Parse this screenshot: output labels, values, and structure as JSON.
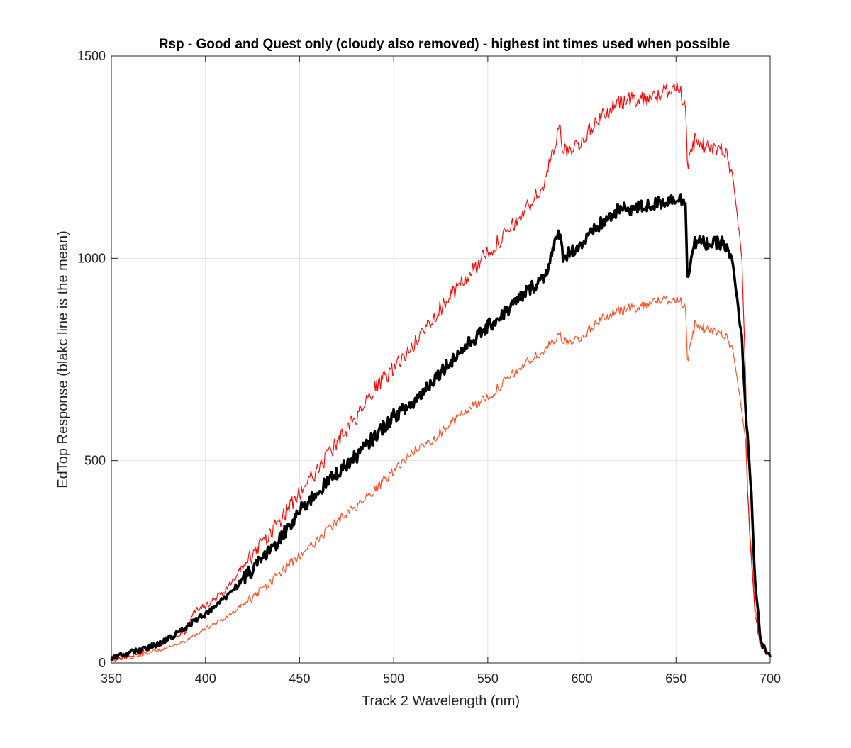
{
  "chart_data": {
    "type": "line",
    "title": "Rsp - Good and Quest only (cloudy also removed) - highest int times used when possible",
    "xlabel": "Track 2 Wavelength (nm)",
    "ylabel": "EdTop Response (blakc line is the mean)",
    "xlim": [
      350,
      700
    ],
    "ylim": [
      0,
      1500
    ],
    "xticks": [
      "350",
      "400",
      "450",
      "500",
      "550",
      "600",
      "650",
      "700"
    ],
    "yticks": [
      "0",
      "500",
      "1000",
      "1500"
    ],
    "grid": true,
    "colors": {
      "upper": "#ff0000",
      "lower": "#ff4a1f",
      "mean": "#000000",
      "grid": "#e3e3e3",
      "axis": "#262626"
    },
    "x": [
      350,
      360,
      370,
      380,
      390,
      395,
      400,
      410,
      420,
      430,
      440,
      450,
      460,
      470,
      480,
      490,
      500,
      510,
      520,
      530,
      540,
      550,
      560,
      570,
      580,
      588,
      590,
      600,
      610,
      620,
      630,
      640,
      650,
      655,
      656,
      660,
      670,
      675,
      680,
      685,
      687,
      688,
      690,
      692,
      695,
      700
    ],
    "series": [
      {
        "key": "upper",
        "values": [
          10,
          22,
          35,
          55,
          80,
          135,
          140,
          178,
          240,
          295,
          355,
          420,
          480,
          545,
          605,
          675,
          730,
          780,
          850,
          905,
          960,
          1015,
          1060,
          1120,
          1180,
          1330,
          1260,
          1290,
          1350,
          1385,
          1395,
          1400,
          1430,
          1385,
          1220,
          1290,
          1270,
          1275,
          1210,
          1000,
          700,
          420,
          250,
          120,
          40,
          15
        ]
      },
      {
        "key": "mean",
        "values": [
          12,
          25,
          38,
          58,
          88,
          108,
          120,
          160,
          205,
          255,
          310,
          375,
          425,
          470,
          510,
          560,
          610,
          640,
          695,
          745,
          790,
          830,
          870,
          915,
          955,
          1065,
          1005,
          1035,
          1085,
          1120,
          1125,
          1135,
          1150,
          1140,
          960,
          1040,
          1035,
          1040,
          990,
          800,
          620,
          560,
          420,
          200,
          50,
          15
        ]
      },
      {
        "key": "lower",
        "values": [
          8,
          15,
          25,
          38,
          55,
          70,
          85,
          110,
          145,
          180,
          225,
          265,
          305,
          350,
          385,
          425,
          475,
          520,
          550,
          590,
          630,
          655,
          700,
          740,
          770,
          815,
          790,
          805,
          850,
          870,
          880,
          895,
          900,
          885,
          740,
          835,
          820,
          815,
          780,
          620,
          550,
          420,
          270,
          140,
          40,
          15
        ]
      }
    ]
  }
}
